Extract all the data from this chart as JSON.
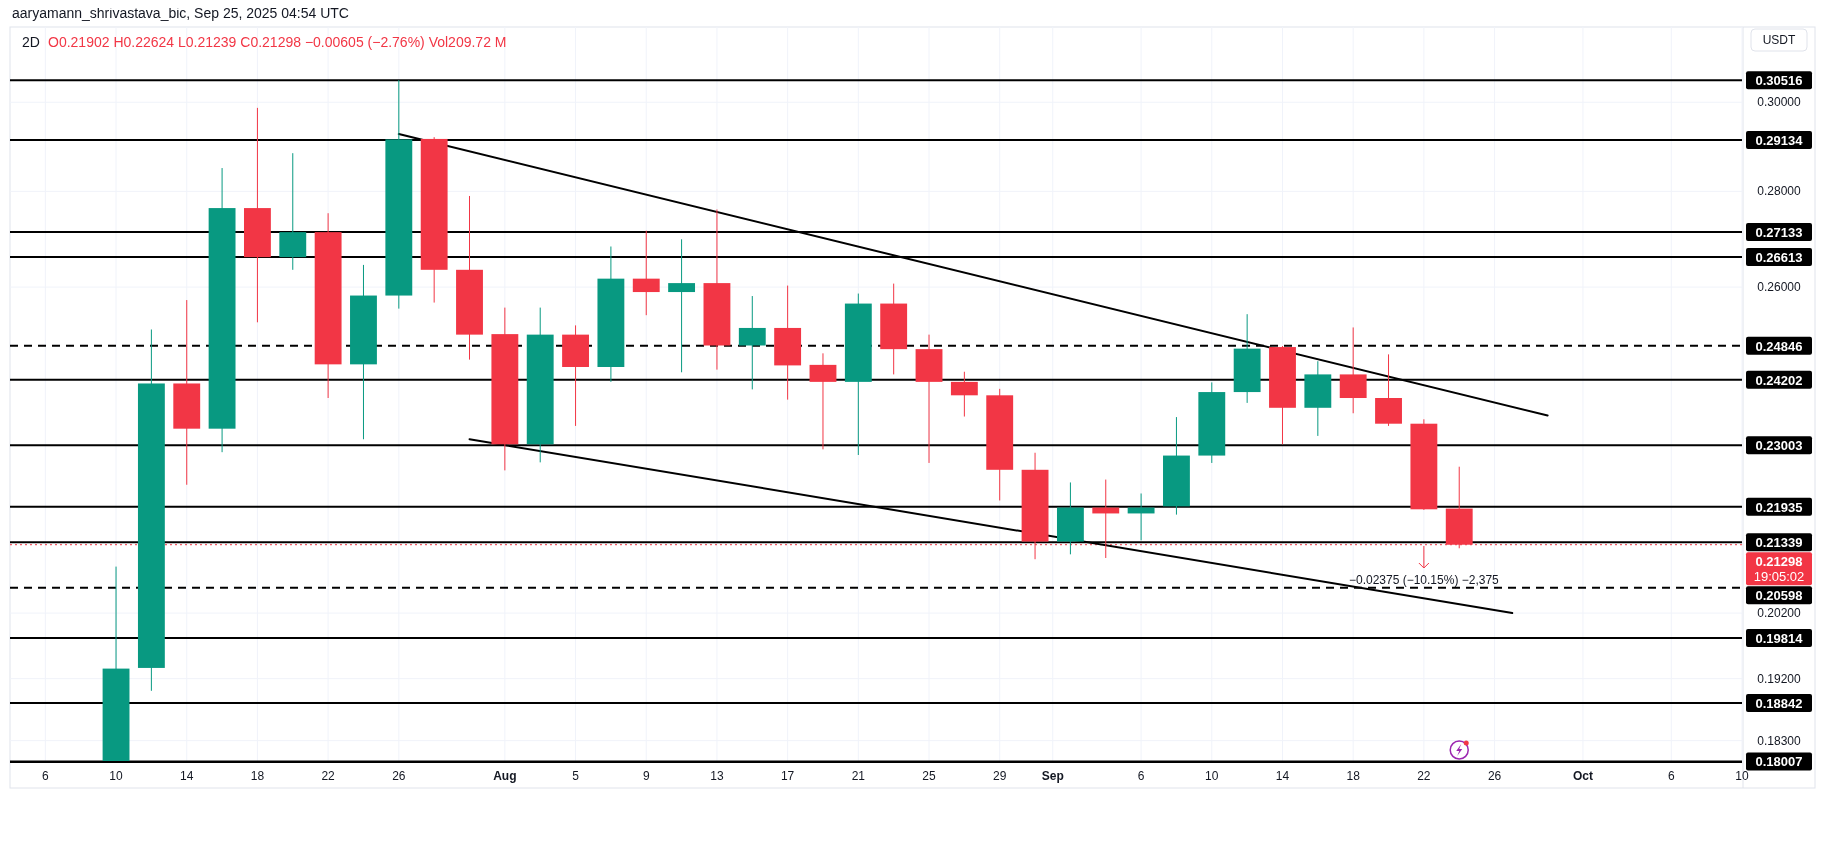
{
  "chart_data": {
    "type": "candlestick",
    "title": "2D",
    "subtitle": "O0.21902 H0.22624 L0.21239 C0.21298 −0.00605 (−2.76%) Vol209.72 M",
    "ylabel": "USDT",
    "x": [
      "2025-07-10",
      "2025-07-12",
      "2025-07-14",
      "2025-07-16",
      "2025-07-18",
      "2025-07-20",
      "2025-07-22",
      "2025-07-24",
      "2025-07-26",
      "2025-07-28",
      "2025-07-30",
      "2025-08-01",
      "2025-08-03",
      "2025-08-05",
      "2025-08-07",
      "2025-08-09",
      "2025-08-11",
      "2025-08-13",
      "2025-08-15",
      "2025-08-17",
      "2025-08-19",
      "2025-08-21",
      "2025-08-23",
      "2025-08-25",
      "2025-08-27",
      "2025-08-29",
      "2025-08-31",
      "2025-09-02",
      "2025-09-04",
      "2025-09-06",
      "2025-09-08",
      "2025-09-10",
      "2025-09-12",
      "2025-09-14",
      "2025-09-16",
      "2025-09-18",
      "2025-09-20",
      "2025-09-22",
      "2025-09-24"
    ],
    "ohlc": [
      [
        0.1801,
        0.2094,
        0.1801,
        0.1935
      ],
      [
        0.1936,
        0.2516,
        0.1902,
        0.2413
      ],
      [
        0.2413,
        0.2574,
        0.2231,
        0.233
      ],
      [
        0.233,
        0.2851,
        0.2288,
        0.2764
      ],
      [
        0.2764,
        0.2987,
        0.253,
        0.2661
      ],
      [
        0.2661,
        0.2884,
        0.2635,
        0.2713
      ],
      [
        0.2713,
        0.2753,
        0.2386,
        0.2449
      ],
      [
        0.2449,
        0.2645,
        0.2311,
        0.2583
      ],
      [
        0.2583,
        0.3052,
        0.2557,
        0.2915
      ],
      [
        0.2916,
        0.292,
        0.2569,
        0.2635
      ],
      [
        0.2635,
        0.279,
        0.2458,
        0.2506
      ],
      [
        0.2507,
        0.2559,
        0.2256,
        0.2302
      ],
      [
        0.2302,
        0.2559,
        0.227,
        0.2506
      ],
      [
        0.2506,
        0.2524,
        0.2335,
        0.2444
      ],
      [
        0.2444,
        0.2683,
        0.2416,
        0.2617
      ],
      [
        0.2617,
        0.2716,
        0.2544,
        0.259
      ],
      [
        0.259,
        0.2698,
        0.2434,
        0.2608
      ],
      [
        0.2608,
        0.2761,
        0.2439,
        0.2485
      ],
      [
        0.2485,
        0.2582,
        0.2402,
        0.2519
      ],
      [
        0.2519,
        0.2603,
        0.2383,
        0.2447
      ],
      [
        0.2448,
        0.247,
        0.2293,
        0.2416
      ],
      [
        0.2416,
        0.2587,
        0.2283,
        0.2567
      ],
      [
        0.2567,
        0.2607,
        0.243,
        0.2478
      ],
      [
        0.2478,
        0.2506,
        0.2269,
        0.2416
      ],
      [
        0.2416,
        0.2435,
        0.2352,
        0.2391
      ],
      [
        0.2391,
        0.2403,
        0.2204,
        0.2257
      ],
      [
        0.2257,
        0.2287,
        0.2106,
        0.2135
      ],
      [
        0.2135,
        0.2235,
        0.2114,
        0.2192
      ],
      [
        0.2192,
        0.224,
        0.2108,
        0.2182
      ],
      [
        0.2182,
        0.2216,
        0.2137,
        0.2192
      ],
      [
        0.2194,
        0.2351,
        0.218,
        0.2282
      ],
      [
        0.2282,
        0.2415,
        0.2269,
        0.2397
      ],
      [
        0.2397,
        0.2546,
        0.2377,
        0.2479
      ],
      [
        0.2482,
        0.2484,
        0.2302,
        0.2368
      ],
      [
        0.2368,
        0.2455,
        0.2317,
        0.243
      ],
      [
        0.243,
        0.252,
        0.2358,
        0.2386
      ],
      [
        0.2386,
        0.2468,
        0.2335,
        0.2339
      ],
      [
        0.2339,
        0.2347,
        0.2188,
        0.2189
      ],
      [
        0.21902,
        0.22624,
        0.21239,
        0.21298
      ]
    ],
    "colors": [
      "#089981",
      "#089981",
      "#f23645",
      "#089981",
      "#f23645",
      "#089981",
      "#f23645",
      "#089981",
      "#089981",
      "#f23645",
      "#f23645",
      "#f23645",
      "#089981",
      "#f23645",
      "#089981",
      "#f23645",
      "#089981",
      "#f23645",
      "#089981",
      "#f23645",
      "#f23645",
      "#089981",
      "#f23645",
      "#f23645",
      "#f23645",
      "#f23645",
      "#f23645",
      "#089981",
      "#f23645",
      "#089981",
      "#089981",
      "#089981",
      "#089981",
      "#f23645",
      "#089981",
      "#f23645",
      "#f23645",
      "#f23645",
      "#f23645"
    ],
    "series": [
      {
        "type": "line",
        "color": "#000000",
        "x": [
          "2025-07-26",
          "2025-09-29"
        ],
        "values": [
          0.2927,
          0.2354
        ]
      },
      {
        "type": "line",
        "color": "#000000",
        "x": [
          "2025-07-30",
          "2025-09-27"
        ],
        "values": [
          0.2311,
          0.202
        ]
      }
    ],
    "xlim": [
      "2025-07-04",
      "2025-10-10"
    ],
    "xticks": [
      {
        "value": "2025-07-06",
        "label": "6"
      },
      {
        "value": "2025-07-10",
        "label": "10"
      },
      {
        "value": "2025-07-14",
        "label": "14"
      },
      {
        "value": "2025-07-18",
        "label": "18"
      },
      {
        "value": "2025-07-22",
        "label": "22"
      },
      {
        "value": "2025-07-26",
        "label": "26"
      },
      {
        "value": "2025-08-01",
        "label": "Aug"
      },
      {
        "value": "2025-08-05",
        "label": "5"
      },
      {
        "value": "2025-08-09",
        "label": "9"
      },
      {
        "value": "2025-08-13",
        "label": "13"
      },
      {
        "value": "2025-08-17",
        "label": "17"
      },
      {
        "value": "2025-08-21",
        "label": "21"
      },
      {
        "value": "2025-08-25",
        "label": "25"
      },
      {
        "value": "2025-08-29",
        "label": "29"
      },
      {
        "value": "2025-09-01",
        "label": "Sep"
      },
      {
        "value": "2025-09-06",
        "label": "6"
      },
      {
        "value": "2025-09-10",
        "label": "10"
      },
      {
        "value": "2025-09-14",
        "label": "14"
      },
      {
        "value": "2025-09-18",
        "label": "18"
      },
      {
        "value": "2025-09-22",
        "label": "22"
      },
      {
        "value": "2025-09-26",
        "label": "26"
      },
      {
        "value": "2025-10-01",
        "label": "Oct"
      },
      {
        "value": "2025-10-06",
        "label": "6"
      },
      {
        "value": "2025-10-10",
        "label": "10"
      }
    ],
    "ylim": [
      0.18,
      0.318
    ],
    "yticks": [
      {
        "value": 0.3,
        "label": "0.30000"
      },
      {
        "value": 0.28,
        "label": "0.28000"
      },
      {
        "value": 0.26,
        "label": "0.26000"
      },
      {
        "value": 0.202,
        "label": "0.20200"
      },
      {
        "value": 0.192,
        "label": "0.19200"
      },
      {
        "value": 0.183,
        "label": "0.18300"
      }
    ],
    "log": "y",
    "grid": true,
    "ref_lines": [
      {
        "axis": "y",
        "value": 0.30516,
        "label": "0.30516"
      },
      {
        "axis": "y",
        "value": 0.29134,
        "label": "0.29134"
      },
      {
        "axis": "y",
        "value": 0.27133,
        "label": "0.27133"
      },
      {
        "axis": "y",
        "value": 0.26613,
        "label": "0.26613"
      },
      {
        "axis": "y",
        "value": 0.24846,
        "label": "0.24846",
        "line_style": "dashed"
      },
      {
        "axis": "y",
        "value": 0.24202,
        "label": "0.24202"
      },
      {
        "axis": "y",
        "value": 0.23003,
        "label": "0.23003"
      },
      {
        "axis": "y",
        "value": 0.21935,
        "label": "0.21935"
      },
      {
        "axis": "y",
        "value": 0.21339,
        "label": "0.21339"
      },
      {
        "axis": "y",
        "value": 0.21298,
        "label": "0.21298",
        "color": "#f23645",
        "line_style": "dotted"
      },
      {
        "axis": "y",
        "value": 0.20598,
        "label": "0.20598",
        "line_style": "dashed"
      },
      {
        "axis": "y",
        "value": 0.19814,
        "label": "0.19814"
      },
      {
        "axis": "y",
        "value": 0.18842,
        "label": "0.18842"
      },
      {
        "axis": "y",
        "value": 0.18007,
        "label": "0.18007"
      }
    ],
    "annotations": [
      "aaryamann_shrivastava_bic, Sep 25, 2025 04:54 UTC",
      "19:05:02",
      "−0.02375 (−10.15%) −2,375"
    ]
  }
}
